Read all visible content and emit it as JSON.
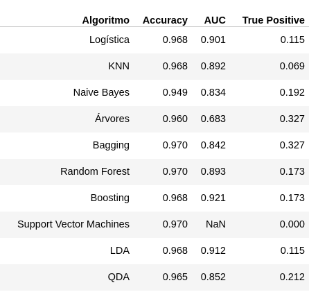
{
  "table": {
    "columns": [
      "Algoritmo",
      "Accuracy",
      "AUC",
      "True Positive"
    ],
    "rows": [
      {
        "algoritmo": "Logística",
        "accuracy": "0.968",
        "auc": "0.901",
        "true_positive": "0.115"
      },
      {
        "algoritmo": "KNN",
        "accuracy": "0.968",
        "auc": "0.892",
        "true_positive": "0.069"
      },
      {
        "algoritmo": "Naive Bayes",
        "accuracy": "0.949",
        "auc": "0.834",
        "true_positive": "0.192"
      },
      {
        "algoritmo": "Árvores",
        "accuracy": "0.960",
        "auc": "0.683",
        "true_positive": "0.327"
      },
      {
        "algoritmo": "Bagging",
        "accuracy": "0.970",
        "auc": "0.842",
        "true_positive": "0.327"
      },
      {
        "algoritmo": "Random Forest",
        "accuracy": "0.970",
        "auc": "0.893",
        "true_positive": "0.173"
      },
      {
        "algoritmo": "Boosting",
        "accuracy": "0.968",
        "auc": "0.921",
        "true_positive": "0.173"
      },
      {
        "algoritmo": "Support Vector Machines",
        "accuracy": "0.970",
        "auc": "NaN",
        "true_positive": "0.000"
      },
      {
        "algoritmo": "LDA",
        "accuracy": "0.968",
        "auc": "0.912",
        "true_positive": "0.115"
      },
      {
        "algoritmo": "QDA",
        "accuracy": "0.965",
        "auc": "0.852",
        "true_positive": "0.212"
      }
    ]
  },
  "colors": {
    "text": "#000000",
    "stripe": "#f5f5f5",
    "header_rule": "#c8c8c8",
    "background": "#ffffff"
  }
}
